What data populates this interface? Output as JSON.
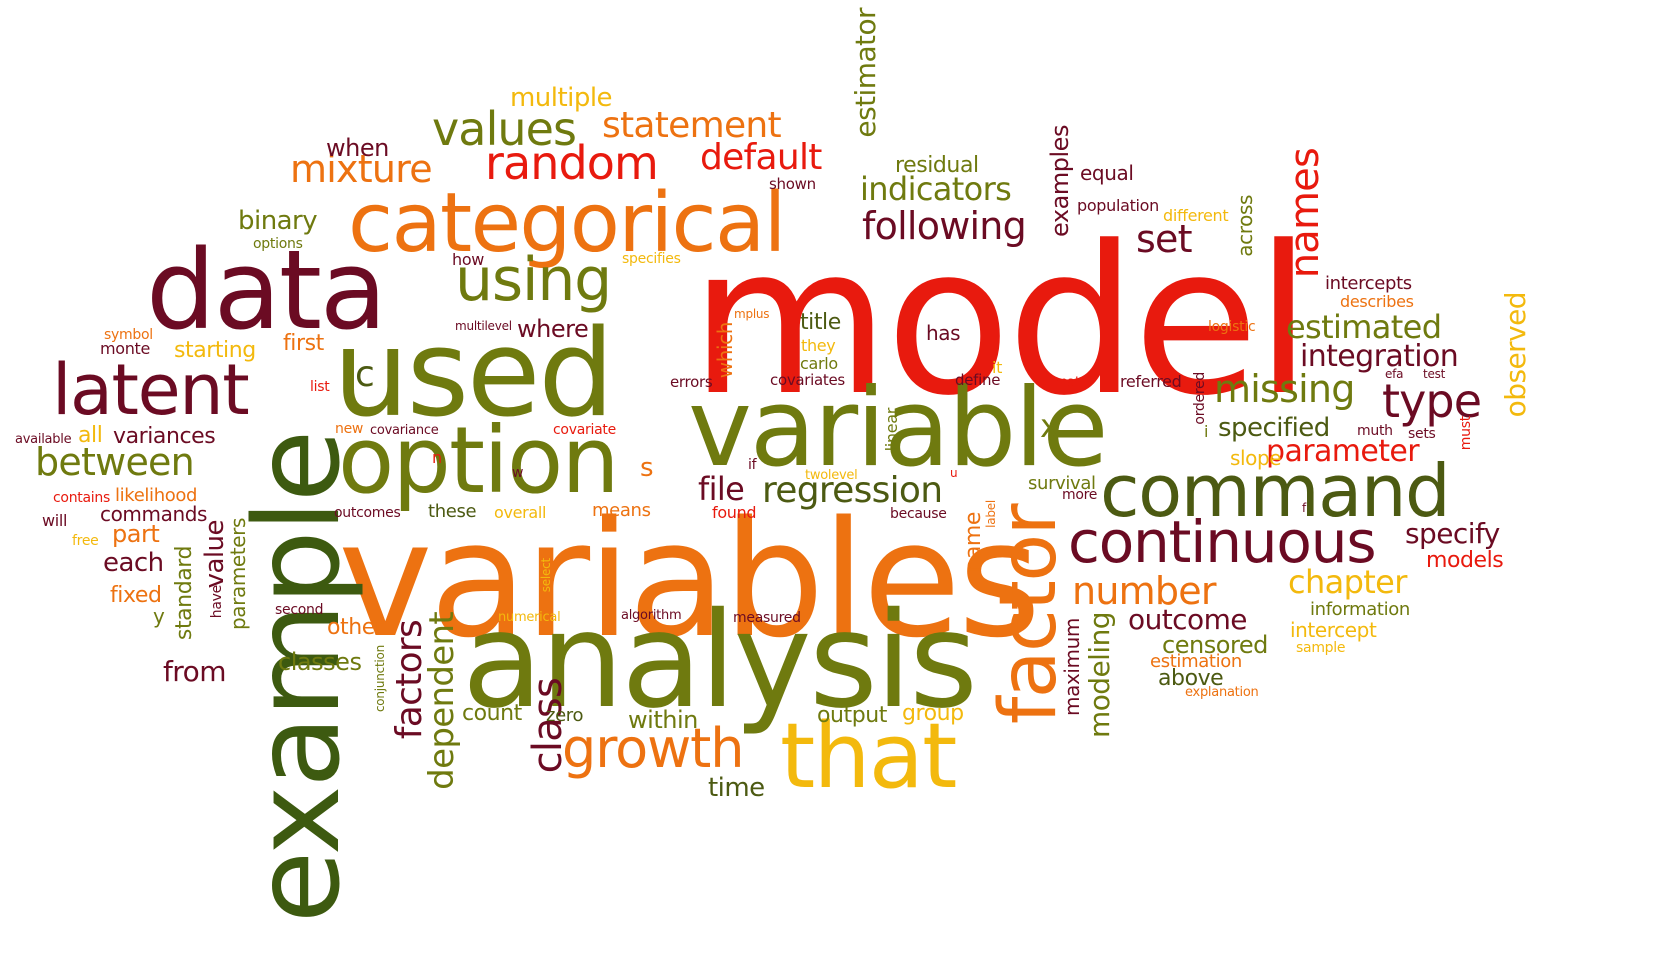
{
  "palette": {
    "red": "#e81a0e",
    "orange": "#ed7211",
    "gold": "#f3b90d",
    "olive": "#6f7a0f",
    "green": "#3d5a10",
    "maroon": "#6b0b23",
    "darkolive": "#4c5a12"
  },
  "words": [
    {
      "text": "model",
      "color": "red"
    },
    {
      "text": "variables",
      "color": "orange"
    },
    {
      "text": "analysis",
      "color": "olive"
    },
    {
      "text": "variable",
      "color": "olive"
    },
    {
      "text": "used",
      "color": "olive"
    },
    {
      "text": "data",
      "color": "maroon"
    },
    {
      "text": "example",
      "color": "green"
    },
    {
      "text": "categorical",
      "color": "orange"
    },
    {
      "text": "option",
      "color": "olive"
    },
    {
      "text": "that",
      "color": "gold"
    },
    {
      "text": "command",
      "color": "darkolive"
    },
    {
      "text": "factor",
      "color": "orange"
    },
    {
      "text": "continuous",
      "color": "maroon"
    },
    {
      "text": "latent",
      "color": "maroon"
    },
    {
      "text": "using",
      "color": "olive"
    },
    {
      "text": "growth",
      "color": "orange"
    },
    {
      "text": "random",
      "color": "red"
    },
    {
      "text": "values",
      "color": "olive"
    },
    {
      "text": "between",
      "color": "olive"
    },
    {
      "text": "mixture",
      "color": "orange"
    },
    {
      "text": "statement",
      "color": "orange"
    },
    {
      "text": "default",
      "color": "red"
    },
    {
      "text": "following",
      "color": "maroon"
    },
    {
      "text": "missing",
      "color": "olive"
    },
    {
      "text": "type",
      "color": "maroon"
    },
    {
      "text": "regression",
      "color": "darkolive"
    },
    {
      "text": "number",
      "color": "orange"
    },
    {
      "text": "names",
      "color": "red"
    },
    {
      "text": "estimated",
      "color": "olive"
    },
    {
      "text": "integration",
      "color": "maroon"
    },
    {
      "text": "parameter",
      "color": "red"
    },
    {
      "text": "indicators",
      "color": "olive"
    },
    {
      "text": "set",
      "color": "maroon"
    },
    {
      "text": "multiple",
      "color": "gold"
    },
    {
      "text": "estimator",
      "color": "olive"
    },
    {
      "text": "observed",
      "color": "gold"
    },
    {
      "text": "chapter",
      "color": "gold"
    },
    {
      "text": "specify",
      "color": "maroon"
    },
    {
      "text": "outcome",
      "color": "maroon"
    },
    {
      "text": "file",
      "color": "maroon"
    },
    {
      "text": "class",
      "color": "maroon"
    },
    {
      "text": "dependent",
      "color": "olive"
    },
    {
      "text": "factors",
      "color": "maroon"
    },
    {
      "text": "specified",
      "color": "darkolive"
    },
    {
      "text": "binary",
      "color": "olive"
    },
    {
      "text": "examples",
      "color": "maroon"
    },
    {
      "text": "residual",
      "color": "olive"
    },
    {
      "text": "when",
      "color": "maroon"
    },
    {
      "text": "where",
      "color": "maroon"
    },
    {
      "text": "starting",
      "color": "gold"
    },
    {
      "text": "first",
      "color": "orange"
    },
    {
      "text": "variances",
      "color": "maroon"
    },
    {
      "text": "all",
      "color": "gold"
    },
    {
      "text": "likelihood",
      "color": "orange"
    },
    {
      "text": "commands",
      "color": "maroon"
    },
    {
      "text": "part",
      "color": "orange"
    },
    {
      "text": "each",
      "color": "maroon"
    },
    {
      "text": "fixed",
      "color": "orange"
    },
    {
      "text": "value",
      "color": "maroon"
    },
    {
      "text": "standard",
      "color": "olive"
    },
    {
      "text": "parameters",
      "color": "olive"
    },
    {
      "text": "from",
      "color": "maroon"
    },
    {
      "text": "classes",
      "color": "olive"
    },
    {
      "text": "other",
      "color": "orange"
    },
    {
      "text": "count",
      "color": "olive"
    },
    {
      "text": "zero",
      "color": "darkolive"
    },
    {
      "text": "within",
      "color": "olive"
    },
    {
      "text": "time",
      "color": "darkolive"
    },
    {
      "text": "output",
      "color": "olive"
    },
    {
      "text": "group",
      "color": "gold"
    },
    {
      "text": "modeling",
      "color": "olive"
    },
    {
      "text": "maximum",
      "color": "maroon"
    },
    {
      "text": "name",
      "color": "orange"
    },
    {
      "text": "censored",
      "color": "olive"
    },
    {
      "text": "above",
      "color": "darkolive"
    },
    {
      "text": "estimation",
      "color": "orange"
    },
    {
      "text": "intercept",
      "color": "gold"
    },
    {
      "text": "information",
      "color": "olive"
    },
    {
      "text": "models",
      "color": "red"
    },
    {
      "text": "slope",
      "color": "gold"
    },
    {
      "text": "across",
      "color": "olive"
    },
    {
      "text": "intercepts",
      "color": "maroon"
    },
    {
      "text": "describes",
      "color": "orange"
    },
    {
      "text": "equal",
      "color": "maroon"
    },
    {
      "text": "population",
      "color": "maroon"
    },
    {
      "text": "different",
      "color": "gold"
    },
    {
      "text": "title",
      "color": "darkolive"
    },
    {
      "text": "has",
      "color": "maroon"
    },
    {
      "text": "which",
      "color": "orange"
    },
    {
      "text": "means",
      "color": "orange"
    },
    {
      "text": "these",
      "color": "darkolive"
    },
    {
      "text": "survival",
      "color": "olive"
    },
    {
      "text": "referred",
      "color": "maroon"
    },
    {
      "text": "logistic",
      "color": "orange"
    },
    {
      "text": "linear",
      "color": "olive"
    },
    {
      "text": "c",
      "color": "darkolive"
    },
    {
      "text": "x",
      "color": "olive"
    },
    {
      "text": "s",
      "color": "orange"
    },
    {
      "text": "y",
      "color": "olive"
    },
    {
      "text": "i",
      "color": "olive"
    },
    {
      "text": "n",
      "color": "red"
    },
    {
      "text": "w",
      "color": "maroon"
    },
    {
      "text": "u",
      "color": "red"
    },
    {
      "text": "f",
      "color": "maroon"
    },
    {
      "text": "it",
      "color": "gold"
    },
    {
      "text": "if",
      "color": "maroon"
    },
    {
      "text": "they",
      "color": "gold"
    },
    {
      "text": "carlo",
      "color": "olive"
    },
    {
      "text": "monte",
      "color": "maroon"
    },
    {
      "text": "symbol",
      "color": "orange"
    },
    {
      "text": "shown",
      "color": "maroon"
    },
    {
      "text": "options",
      "color": "olive"
    },
    {
      "text": "how",
      "color": "maroon"
    },
    {
      "text": "specifies",
      "color": "gold"
    },
    {
      "text": "mplus",
      "color": "orange"
    },
    {
      "text": "multilevel",
      "color": "maroon"
    },
    {
      "text": "errors",
      "color": "maroon"
    },
    {
      "text": "covariates",
      "color": "maroon"
    },
    {
      "text": "define",
      "color": "maroon"
    },
    {
      "text": "format",
      "color": "red"
    },
    {
      "text": "efa",
      "color": "maroon"
    },
    {
      "text": "test",
      "color": "maroon"
    },
    {
      "text": "ordered",
      "color": "maroon"
    },
    {
      "text": "muth",
      "color": "maroon"
    },
    {
      "text": "sets",
      "color": "maroon"
    },
    {
      "text": "must",
      "color": "red"
    },
    {
      "text": "list",
      "color": "red"
    },
    {
      "text": "available",
      "color": "maroon"
    },
    {
      "text": "new",
      "color": "orange"
    },
    {
      "text": "covariance",
      "color": "maroon"
    },
    {
      "text": "covariate",
      "color": "red"
    },
    {
      "text": "twolevel",
      "color": "gold"
    },
    {
      "text": "contains",
      "color": "red"
    },
    {
      "text": "will",
      "color": "maroon"
    },
    {
      "text": "free",
      "color": "gold"
    },
    {
      "text": "outcomes",
      "color": "maroon"
    },
    {
      "text": "overall",
      "color": "gold"
    },
    {
      "text": "found",
      "color": "red"
    },
    {
      "text": "because",
      "color": "maroon"
    },
    {
      "text": "label",
      "color": "orange"
    },
    {
      "text": "more",
      "color": "maroon"
    },
    {
      "text": "select",
      "color": "gold"
    },
    {
      "text": "have",
      "color": "maroon"
    },
    {
      "text": "second",
      "color": "maroon"
    },
    {
      "text": "numerical",
      "color": "gold"
    },
    {
      "text": "algorithm",
      "color": "maroon"
    },
    {
      "text": "measured",
      "color": "maroon"
    },
    {
      "text": "sample",
      "color": "gold"
    },
    {
      "text": "explanation",
      "color": "orange"
    },
    {
      "text": "conjunction",
      "color": "olive"
    }
  ]
}
